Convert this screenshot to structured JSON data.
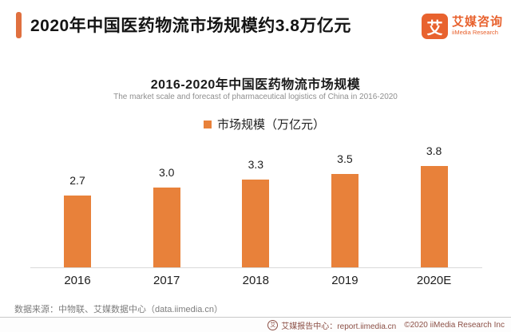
{
  "header": {
    "title": "2020年中国医药物流市场规模约3.8万亿元",
    "logo": {
      "mark": "艾",
      "name_cn": "艾媒咨询",
      "name_en": "iiMedia Research"
    }
  },
  "chart": {
    "title": "2016-2020年中国医药物流市场规模",
    "subtitle": "The market scale and forecast of pharmaceutical logistics of China in 2016-2020",
    "legend_label": "市场规模（万亿元）"
  },
  "chart_data": {
    "type": "bar",
    "title": "2016-2020年中国医药物流市场规模",
    "subtitle": "The market scale and forecast of pharmaceutical logistics of China in 2016-2020",
    "categories": [
      "2016",
      "2017",
      "2018",
      "2019",
      "2020E"
    ],
    "values": [
      2.7,
      3.0,
      3.3,
      3.5,
      3.8
    ],
    "value_labels": [
      "2.7",
      "3.0",
      "3.3",
      "3.5",
      "3.8"
    ],
    "series_name": "市场规模（万亿元）",
    "ylabel": "万亿元",
    "ylim": [
      0,
      4.2
    ],
    "grid": false,
    "legend_position": "top",
    "bar_color": "#E8813A"
  },
  "source_note": "数据来源：中物联、艾媒数据中心（data.iimedia.cn）",
  "footer": {
    "icon": "艾",
    "report_center": "艾媒报告中心：report.iimedia.cn",
    "copyright": "©2020  iiMedia Research Inc"
  },
  "colors": {
    "bar_orange": "#E8813A",
    "accent_orange": "#E0703F",
    "logo_orange": "#E8622E",
    "footer_text": "#8C5046"
  }
}
